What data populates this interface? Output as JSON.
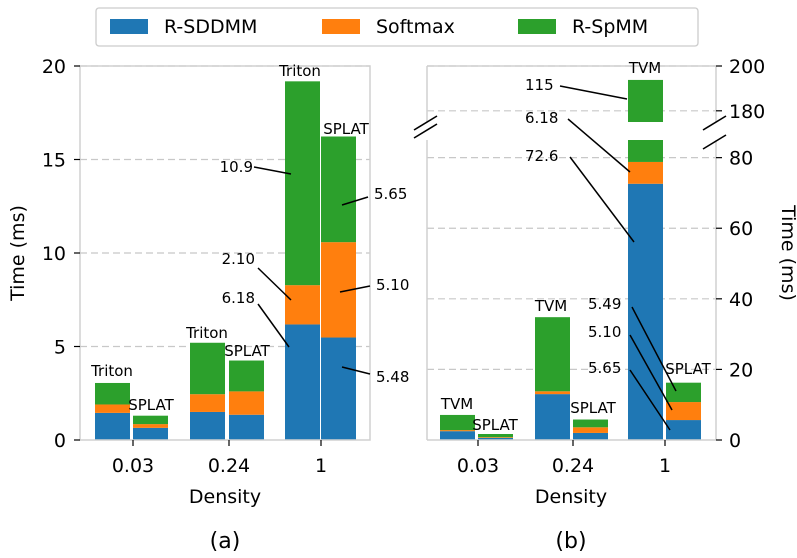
{
  "legend": [
    {
      "name": "R-SDDMM",
      "color": "#1f77b4"
    },
    {
      "name": "Softmax",
      "color": "#ff7f0e"
    },
    {
      "name": "R-SpMM",
      "color": "#2ca02c"
    }
  ],
  "chart_data": [
    {
      "type": "bar",
      "stacked": true,
      "panel_label": "(a)",
      "xlabel": "Density",
      "ylabel": "Time (ms)",
      "ylim": [
        0,
        20
      ],
      "yticks": [
        "0",
        "5",
        "10",
        "15",
        "20"
      ],
      "grid": true,
      "categories": [
        "0.03",
        "0.24",
        "1"
      ],
      "bars": [
        {
          "category": "0.03",
          "system": "Triton",
          "values": [
            1.45,
            0.45,
            1.15
          ]
        },
        {
          "category": "0.03",
          "system": "SPLAT",
          "values": [
            0.65,
            0.2,
            0.45
          ]
        },
        {
          "category": "0.24",
          "system": "Triton",
          "values": [
            1.5,
            0.95,
            2.75
          ]
        },
        {
          "category": "0.24",
          "system": "SPLAT",
          "values": [
            1.35,
            1.25,
            1.65
          ]
        },
        {
          "category": "1",
          "system": "Triton",
          "values": [
            6.18,
            2.1,
            10.9
          ]
        },
        {
          "category": "1",
          "system": "SPLAT",
          "values": [
            5.48,
            5.1,
            5.65
          ]
        }
      ],
      "annotations": [
        "10.9",
        "2.10",
        "6.18",
        "5.65",
        "5.10",
        "5.48"
      ]
    },
    {
      "type": "bar",
      "stacked": true,
      "panel_label": "(b)",
      "xlabel": "Density",
      "ylabel": "Time (ms)",
      "y_axis_side": "right",
      "broken_axis": true,
      "ylim_lower": [
        0,
        85
      ],
      "ylim_upper": [
        175,
        200
      ],
      "yticks": [
        "0",
        "20",
        "40",
        "60",
        "80",
        "180",
        "200"
      ],
      "grid": true,
      "categories": [
        "0.03",
        "0.24",
        "1"
      ],
      "bars": [
        {
          "category": "0.03",
          "system": "TVM",
          "values": [
            2.5,
            0.3,
            4.3
          ]
        },
        {
          "category": "0.03",
          "system": "SPLAT",
          "values": [
            0.6,
            0.2,
            0.9
          ]
        },
        {
          "category": "0.24",
          "system": "TVM",
          "values": [
            13,
            0.8,
            21
          ]
        },
        {
          "category": "0.24",
          "system": "SPLAT",
          "values": [
            2,
            1.6,
            2.2
          ]
        },
        {
          "category": "1",
          "system": "TVM",
          "values": [
            72.6,
            6.18,
            115
          ]
        },
        {
          "category": "1",
          "system": "SPLAT",
          "values": [
            5.65,
            5.1,
            5.49
          ]
        }
      ],
      "annotations": [
        "115",
        "6.18",
        "72.6",
        "5.49",
        "5.10",
        "5.65"
      ]
    }
  ]
}
